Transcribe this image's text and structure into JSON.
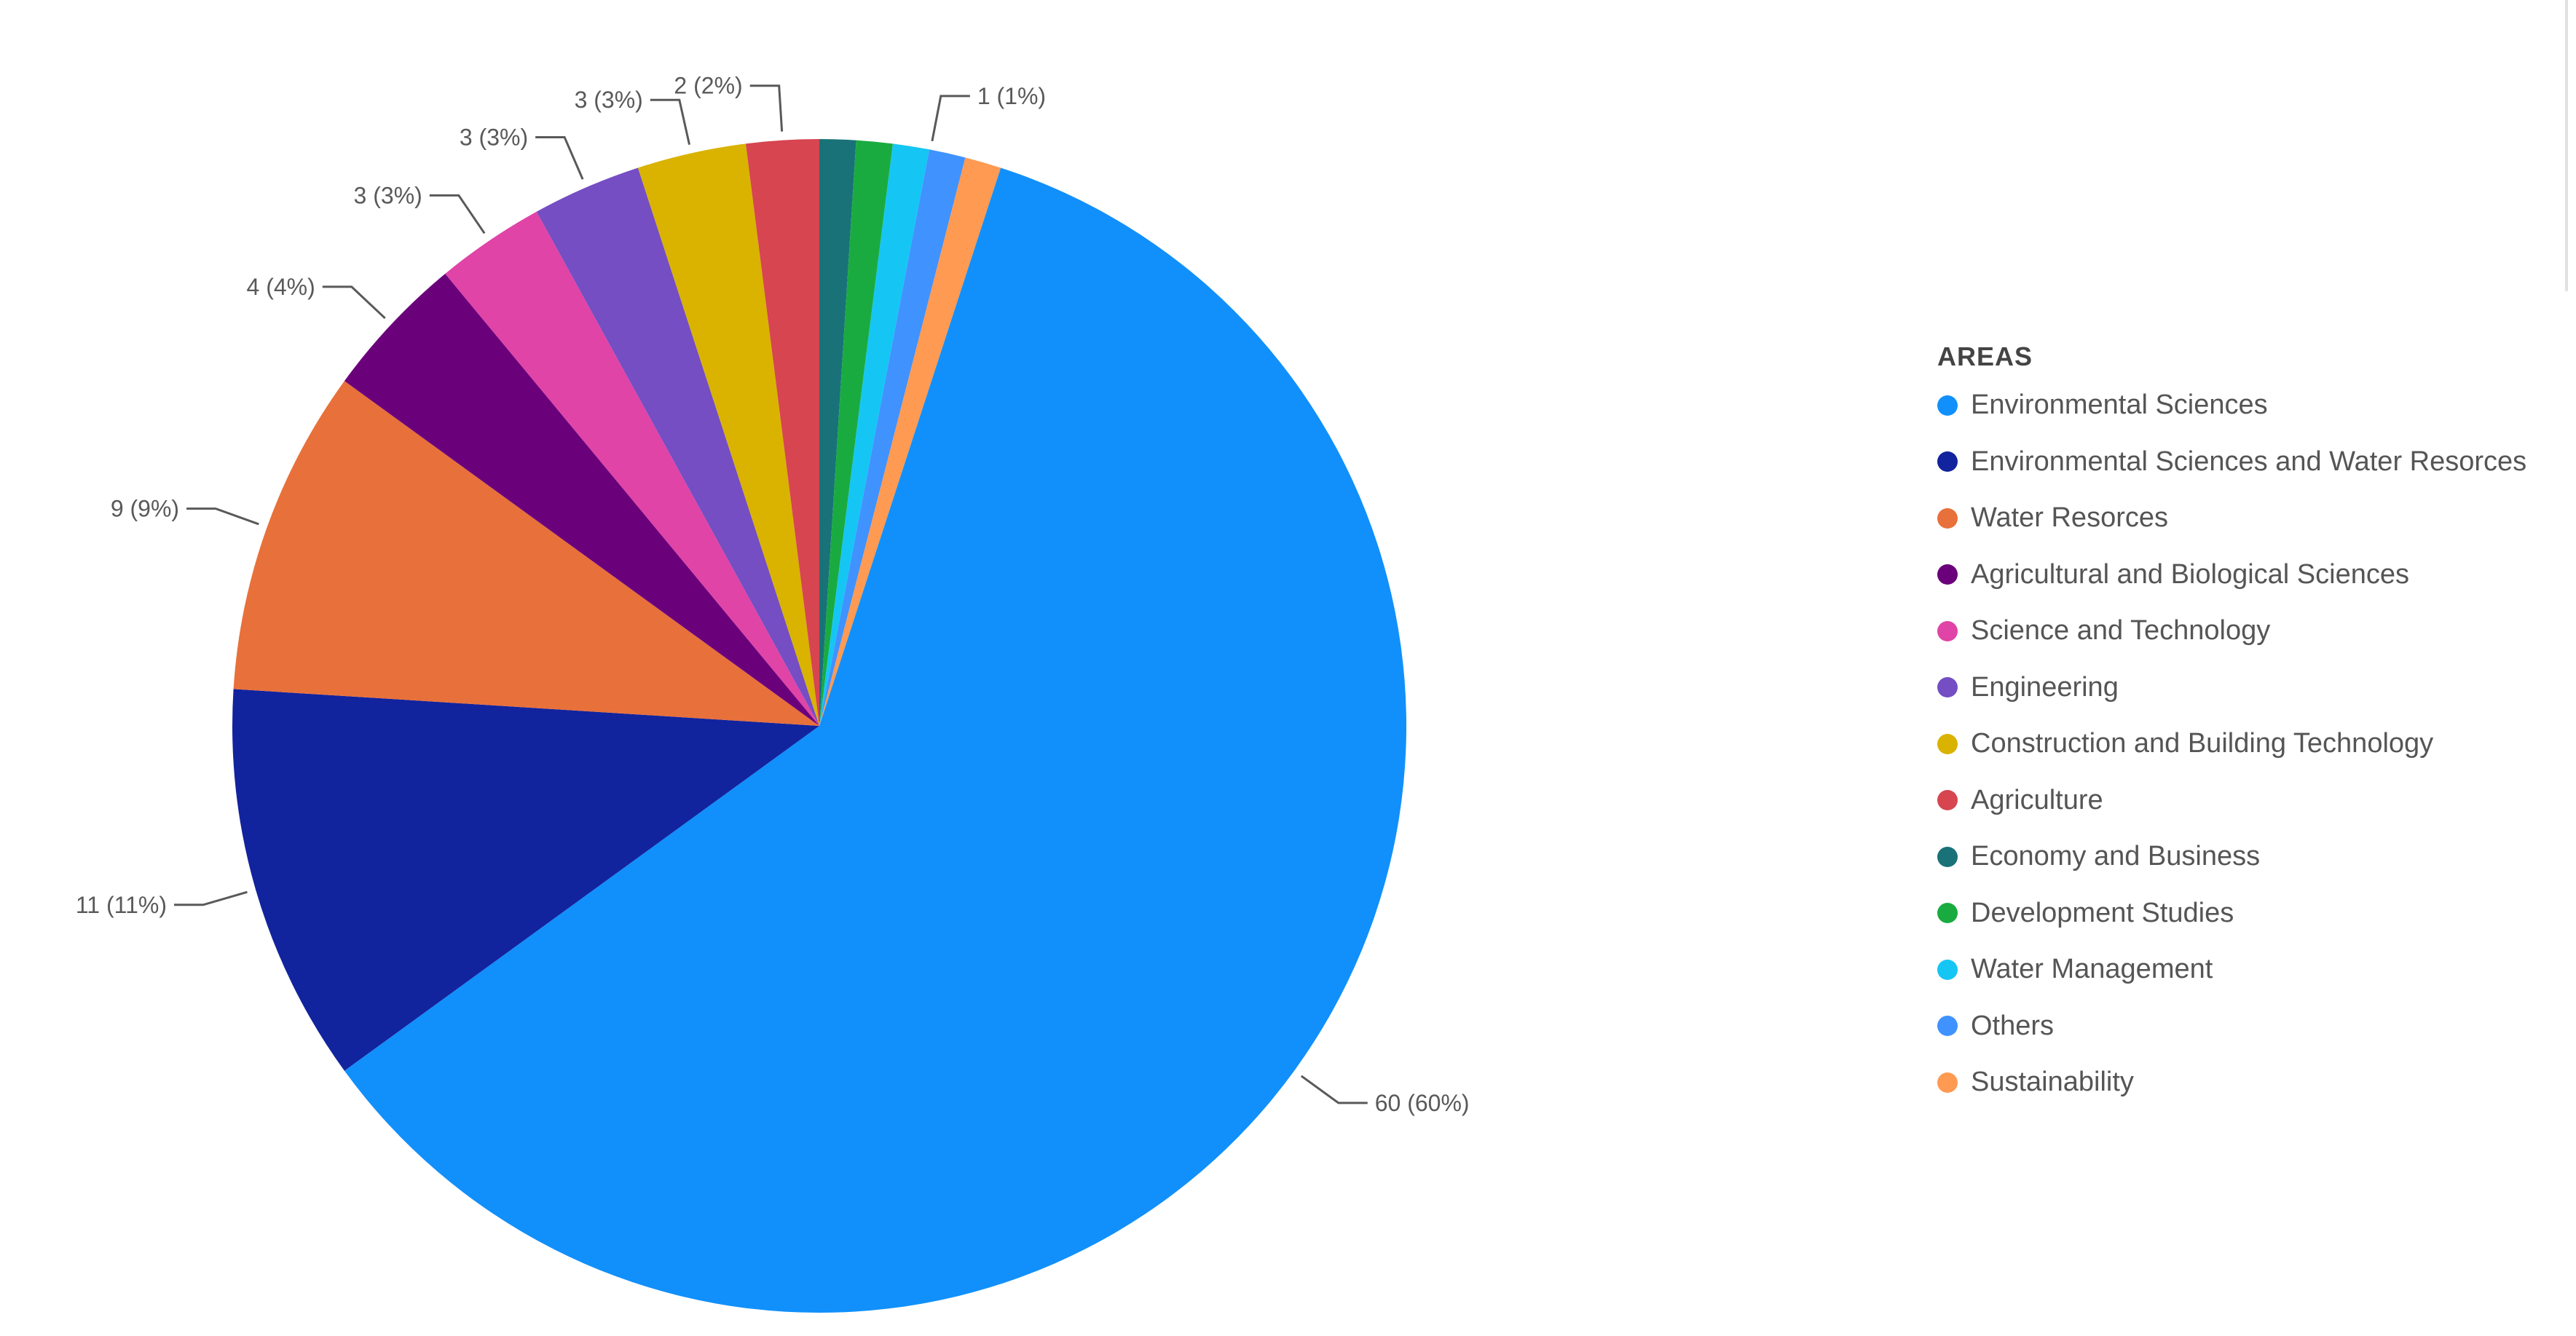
{
  "chart_data": {
    "type": "pie",
    "title": "",
    "legend_title": "AREAS",
    "legend_placement": "right",
    "categories": [
      "Environmental Sciences",
      "Environmental Sciences and Water Resorces",
      "Water Resorces",
      "Agricultural and Biological Sciences",
      "Science and Technology",
      "Engineering",
      "Construction and Building Technology",
      "Agriculture",
      "Economy and Business",
      "Development Studies",
      "Water Management",
      "Others",
      "Sustainability"
    ],
    "values": [
      60,
      11,
      9,
      4,
      3,
      3,
      3,
      2,
      1,
      1,
      1,
      1,
      1
    ],
    "colors": [
      "#1190FB",
      "#12239E",
      "#E8703A",
      "#6B007B",
      "#E044A7",
      "#744EC2",
      "#D9B300",
      "#D64550",
      "#197278",
      "#1AAB40",
      "#15C6F4",
      "#4092FF",
      "#FF9A52"
    ],
    "data_labels": [
      "60 (60%)",
      "11 (11%)",
      "9 (9%)",
      "4 (4%)",
      "3 (3%)",
      "3 (3%)",
      "3 (3%)",
      "2 (2%)",
      "",
      "",
      "1 (1%)",
      "",
      ""
    ]
  }
}
